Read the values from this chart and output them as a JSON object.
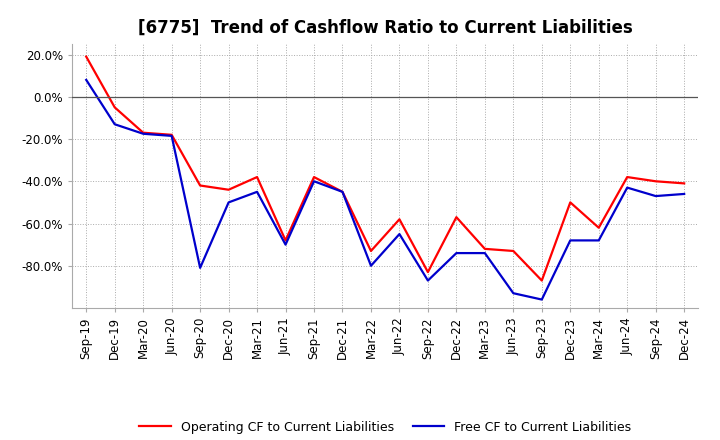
{
  "title": "[6775]  Trend of Cashflow Ratio to Current Liabilities",
  "x_labels": [
    "Sep-19",
    "Dec-19",
    "Mar-20",
    "Jun-20",
    "Sep-20",
    "Dec-20",
    "Mar-21",
    "Jun-21",
    "Sep-21",
    "Dec-21",
    "Mar-22",
    "Jun-22",
    "Sep-22",
    "Dec-22",
    "Mar-23",
    "Jun-23",
    "Sep-23",
    "Dec-23",
    "Mar-24",
    "Jun-24",
    "Sep-24",
    "Dec-24"
  ],
  "operating_cf": [
    19.0,
    -5.0,
    -17.0,
    -18.0,
    -42.0,
    -44.0,
    -38.0,
    -68.0,
    -38.0,
    -45.0,
    -73.0,
    -58.0,
    -83.0,
    -57.0,
    -72.0,
    -73.0,
    -87.0,
    -50.0,
    -62.0,
    -38.0,
    -40.0,
    -41.0
  ],
  "free_cf": [
    8.0,
    -13.0,
    -17.5,
    -18.5,
    -81.0,
    -50.0,
    -45.0,
    -70.0,
    -40.0,
    -45.0,
    -80.0,
    -65.0,
    -87.0,
    -74.0,
    -74.0,
    -93.0,
    -96.0,
    -68.0,
    -68.0,
    -43.0,
    -47.0,
    -46.0
  ],
  "operating_color": "#ff0000",
  "free_color": "#0000cc",
  "ylim": [
    -100,
    25
  ],
  "yticks": [
    20.0,
    0.0,
    -20.0,
    -40.0,
    -60.0,
    -80.0
  ],
  "ytick_labels": [
    "20.0%",
    "0.0%",
    "-20.0%",
    "-40.0%",
    "-60.0%",
    "-80.0%"
  ],
  "grid_color": "#aaaaaa",
  "bg_color": "#ffffff",
  "legend_op": "Operating CF to Current Liabilities",
  "legend_free": "Free CF to Current Liabilities",
  "title_fontsize": 12,
  "axis_fontsize": 8.5,
  "legend_fontsize": 9,
  "line_width": 1.6
}
